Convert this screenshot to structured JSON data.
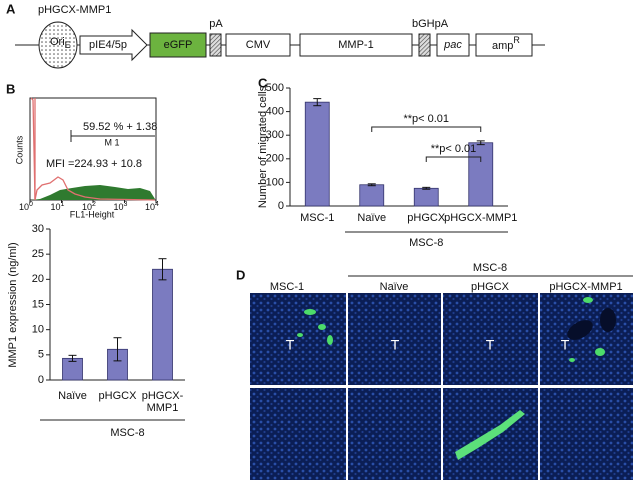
{
  "panel_labels": [
    "A",
    "B",
    "C",
    "D"
  ],
  "vector_map": {
    "title": "pHGCX-MMP1",
    "ori": "Ori",
    "ori_sub": "E",
    "elements": [
      "pIE4/5p",
      "eGFP",
      "CMV",
      "MMP-1",
      "pac"
    ],
    "pA": "pA",
    "bGHpA": "bGHpA",
    "amp": "amp",
    "amp_sup": "R"
  },
  "flow_histogram": {
    "y_label": "Counts",
    "x_label": "FL1-Height",
    "xtick_base": "10",
    "xtick_exps": [
      "0",
      "1",
      "2",
      "3",
      "4"
    ],
    "gate_label": "M 1",
    "gate_pct": "59.52 % + 1.38",
    "mfi": "MFI =224.93 + 10.8"
  },
  "chart_data": [
    {
      "type": "bar",
      "y_label": "MMP1 expression (ng/ml)",
      "categories": [
        "Naïve",
        "pHGCX",
        "pHGCX-MMP1"
      ],
      "values": [
        4.3,
        6.1,
        22
      ],
      "errors": [
        0.6,
        2.3,
        2.1
      ],
      "color": "#7b7bc0",
      "ylim": [
        0,
        30
      ],
      "yticks": [
        0,
        5,
        10,
        15,
        20,
        25,
        30
      ],
      "group_label": "MSC-8"
    },
    {
      "type": "bar",
      "y_label": "Number of migrated cells",
      "categories": [
        "MSC-1",
        "Naïve",
        "pHGCX",
        "pHGCX-MMP1"
      ],
      "values": [
        440,
        90,
        75,
        268
      ],
      "errors": [
        15,
        4,
        4,
        8
      ],
      "color": "#7b7bc0",
      "ylim": [
        0,
        500
      ],
      "yticks": [
        0,
        100,
        200,
        300,
        400,
        500
      ],
      "group_label": "MSC-8",
      "annotations": [
        "**p< 0.01",
        "**p< 0.01"
      ]
    }
  ],
  "micrographs": {
    "group": "MSC-8",
    "columns": [
      "MSC-1",
      "Naïve",
      "pHGCX",
      "pHGCX-MMP1"
    ],
    "tumor_label": "T"
  }
}
